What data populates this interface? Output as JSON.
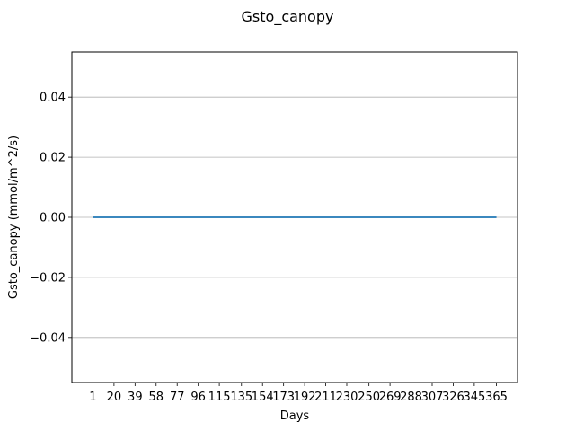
{
  "chart_data": {
    "type": "line",
    "title": "Gsto_canopy",
    "xlabel": "Days",
    "ylabel": "Gsto_canopy (mmol/m^2/s)",
    "x_ticks": [
      1,
      20,
      39,
      58,
      77,
      96,
      115,
      135,
      154,
      173,
      192,
      211,
      230,
      250,
      269,
      288,
      307,
      326,
      345,
      365
    ],
    "y_ticks": [
      -0.04,
      -0.02,
      0.0,
      0.02,
      0.04
    ],
    "y_tick_labels": [
      "−0.04",
      "−0.02",
      "0.00",
      "0.02",
      "0.04"
    ],
    "xlim": [
      -18,
      384
    ],
    "ylim": [
      -0.055,
      0.055
    ],
    "grid": "y",
    "series": [
      {
        "x": [
          1,
          365
        ],
        "values": [
          0,
          0
        ],
        "color": "#1f77b4"
      }
    ]
  }
}
